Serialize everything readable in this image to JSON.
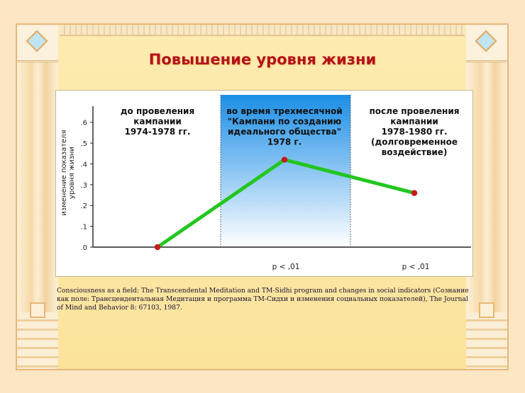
{
  "slide": {
    "title": "Повышение уровня жизни",
    "citation": "Consciousness as a field: The Transcendental Meditation and TM-Sidhi program and changes in social indicators (Сознание как поле: Трансцендентальная Медитация и программа ТМ-Сидхи и изменения социальных показателей), The Journal of Mind and Behavior 8: 67103, 1987."
  },
  "colors": {
    "title": "#b5121b",
    "line": "#22c61f",
    "point": "#c8181e",
    "highlight_top": "#1b8ee6",
    "highlight_bottom": "#ffffff"
  },
  "chart_data": {
    "type": "line",
    "ylabel": "изменение показателя уровня жизни",
    "ylim": [
      0,
      0.65
    ],
    "yticks": [
      {
        "value": 0.0,
        "label": ".0"
      },
      {
        "value": 0.1,
        "label": ".1"
      },
      {
        "value": 0.2,
        "label": ".2"
      },
      {
        "value": 0.3,
        "label": ".3"
      },
      {
        "value": 0.4,
        "label": ".4"
      },
      {
        "value": 0.5,
        "label": ".5"
      },
      {
        "value": 0.6,
        "label": ".6"
      }
    ],
    "periods": [
      {
        "lines": [
          "до провеления",
          "кампании",
          "1974-1978 гг."
        ],
        "highlighted": false
      },
      {
        "lines": [
          "во время трехмесячной",
          "\"Кампани по созданию",
          "идеального общества\"",
          "1978 г."
        ],
        "highlighted": true
      },
      {
        "lines": [
          "после провеления",
          "кампании",
          "1978-1980 гг.",
          "(долговременное",
          "воздействие)"
        ],
        "highlighted": false
      }
    ],
    "series": [
      {
        "values": [
          0.0,
          0.42,
          0.26
        ]
      }
    ],
    "pvalues": [
      "",
      "p < ,01",
      "p < ,01"
    ],
    "grid": false,
    "legend": "none"
  }
}
